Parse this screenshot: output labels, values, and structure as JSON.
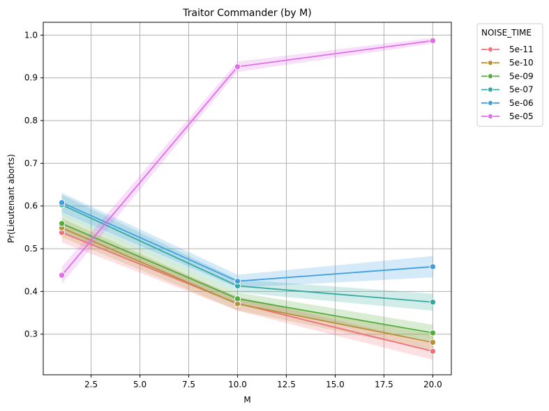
{
  "chart_data": {
    "type": "line",
    "title": "Traitor Commander (by M)",
    "xlabel": "M",
    "ylabel": "Pr(Lieutenant aborts)",
    "x": [
      1,
      10,
      20
    ],
    "xlim": [
      0.05,
      20.95
    ],
    "ylim": [
      0.205,
      1.03
    ],
    "xticks": [
      2.5,
      5.0,
      7.5,
      10.0,
      12.5,
      15.0,
      17.5,
      20.0
    ],
    "xtick_labels": [
      "2.5",
      "5.0",
      "7.5",
      "10.0",
      "12.5",
      "15.0",
      "17.5",
      "20.0"
    ],
    "yticks": [
      0.3,
      0.4,
      0.5,
      0.6,
      0.7,
      0.8,
      0.9,
      1.0
    ],
    "ytick_labels": [
      "0.3",
      "0.4",
      "0.5",
      "0.6",
      "0.7",
      "0.8",
      "0.9",
      "1.0"
    ],
    "grid": true,
    "legend_title": "NOISE_TIME",
    "legend_position": "outside-right-top",
    "series": [
      {
        "name": "5e-11",
        "color": "#f0707a",
        "values": [
          0.538,
          0.372,
          0.26
        ],
        "ci_low": [
          0.515,
          0.355,
          0.24
        ],
        "ci_high": [
          0.56,
          0.388,
          0.28
        ]
      },
      {
        "name": "5e-10",
        "color": "#b8903a",
        "values": [
          0.549,
          0.371,
          0.281
        ],
        "ci_low": [
          0.527,
          0.356,
          0.262
        ],
        "ci_high": [
          0.571,
          0.386,
          0.3
        ]
      },
      {
        "name": "5e-09",
        "color": "#52ad3c",
        "values": [
          0.559,
          0.383,
          0.303
        ],
        "ci_low": [
          0.537,
          0.368,
          0.284
        ],
        "ci_high": [
          0.581,
          0.398,
          0.322
        ]
      },
      {
        "name": "5e-07",
        "color": "#34a9a0",
        "values": [
          0.603,
          0.413,
          0.375
        ],
        "ci_low": [
          0.58,
          0.398,
          0.355
        ],
        "ci_high": [
          0.626,
          0.428,
          0.395
        ]
      },
      {
        "name": "5e-06",
        "color": "#3ea0e0",
        "values": [
          0.608,
          0.424,
          0.458
        ],
        "ci_low": [
          0.585,
          0.409,
          0.433
        ],
        "ci_high": [
          0.631,
          0.439,
          0.483
        ]
      },
      {
        "name": "5e-05",
        "color": "#e06ee8",
        "values": [
          0.438,
          0.926,
          0.987
        ],
        "ci_low": [
          0.418,
          0.914,
          0.98
        ],
        "ci_high": [
          0.458,
          0.938,
          0.994
        ]
      }
    ]
  }
}
